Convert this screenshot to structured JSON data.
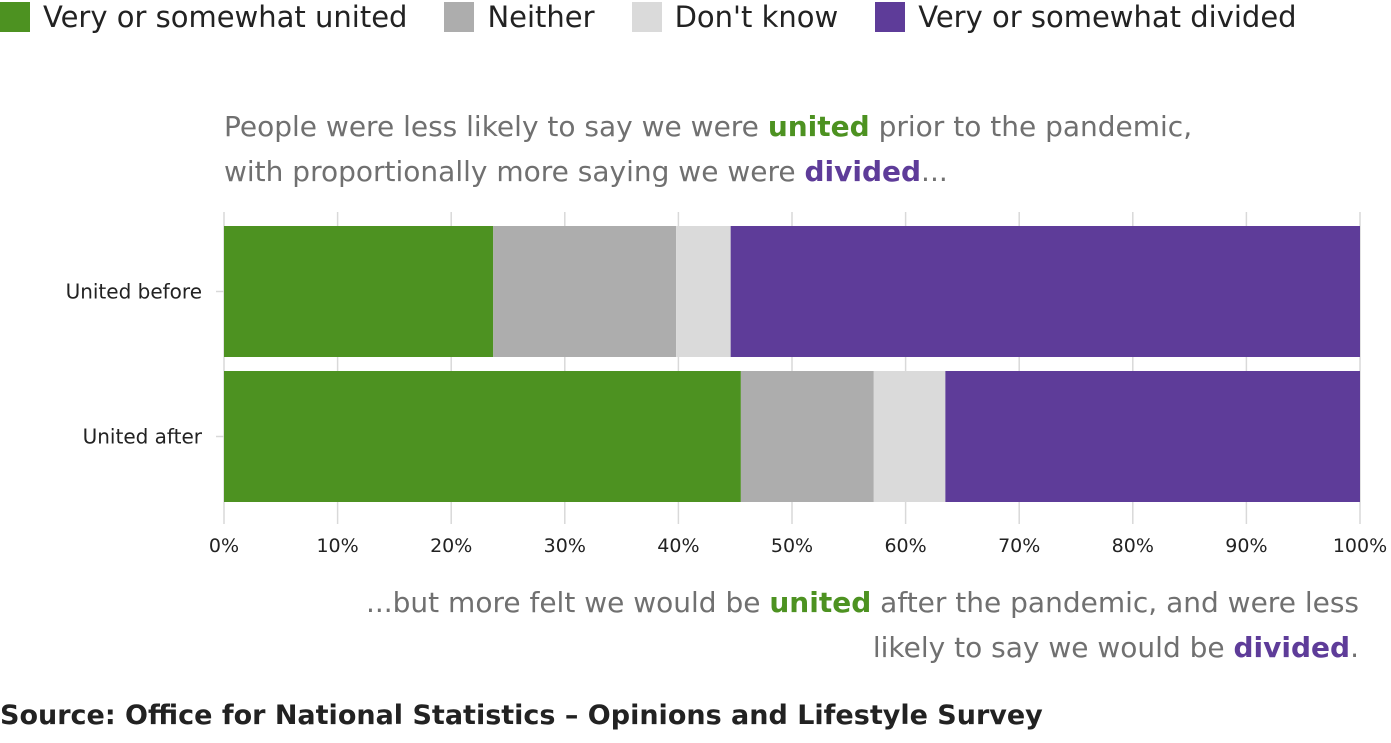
{
  "legend": [
    {
      "label": "Very or somewhat united",
      "color": "#4d9221"
    },
    {
      "label": "Neither",
      "color": "#adadad"
    },
    {
      "label": "Don't know",
      "color": "#dadada"
    },
    {
      "label": "Very or somewhat divided",
      "color": "#5e3c99"
    }
  ],
  "annotations": {
    "top": {
      "line1": {
        "pre": "People were less likely to say we were ",
        "hl": "united",
        "post": " prior to the pandemic,"
      },
      "line2": {
        "pre": "with proportionally more saying we were ",
        "hl": "divided",
        "post": "..."
      }
    },
    "bottom": {
      "line1": {
        "pre": "...but more felt we would be ",
        "hl": "united",
        "post": " after the pandemic, and were less"
      },
      "line2": {
        "pre": "likely to say we would be ",
        "hl": "divided",
        "post": "."
      }
    }
  },
  "colors": {
    "united": "#4d9221",
    "neither": "#adadad",
    "dont_know": "#dadada",
    "divided": "#5e3c99",
    "annotation_text": "#707070"
  },
  "chart_data": {
    "type": "bar",
    "orientation": "horizontal",
    "stacked": true,
    "categories": [
      "United before",
      "United after"
    ],
    "series": [
      {
        "name": "Very or somewhat united",
        "values": [
          23.7,
          45.5
        ],
        "color": "#4d9221"
      },
      {
        "name": "Neither",
        "values": [
          16.1,
          11.7
        ],
        "color": "#adadad"
      },
      {
        "name": "Don't know",
        "values": [
          4.8,
          6.3
        ],
        "color": "#dadada"
      },
      {
        "name": "Very or somewhat divided",
        "values": [
          55.4,
          36.5
        ],
        "color": "#5e3c99"
      }
    ],
    "xlim": [
      0,
      100
    ],
    "xticks": [
      "0%",
      "10%",
      "20%",
      "30%",
      "40%",
      "50%",
      "60%",
      "70%",
      "80%",
      "90%",
      "100%"
    ],
    "xlabel": "",
    "ylabel": "",
    "grid": true
  },
  "source": "Source: Office for National Statistics – Opinions and Lifestyle Survey"
}
